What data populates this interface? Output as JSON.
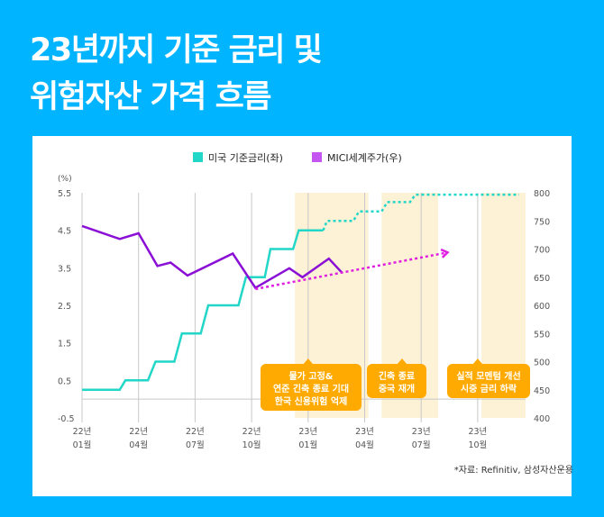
{
  "title": {
    "line1": "23년까지 기준 금리 및",
    "line2": "위험자산 가격 흐름"
  },
  "source": "*자료: Refinitiv, 삼성자산운용",
  "colors": {
    "background": "#00b4ff",
    "rate": "#22d6c8",
    "stock": "#8b10d6",
    "trend": "#e020e0",
    "shade": "#fdf1d6",
    "callout": "#ffaa00"
  },
  "chart_data": {
    "type": "line",
    "title": "23년까지 기준 금리 및 위험자산 가격 흐름",
    "legend": [
      "미국 기준금리(좌)",
      "MICI세계주가(우)"
    ],
    "legend_position": "top-center",
    "left_axis": {
      "unit_label": "(%)",
      "ticks": [
        "5.5",
        "4.5",
        "3.5",
        "2.5",
        "1.5",
        "0.5",
        "-0.5"
      ],
      "range": [
        -0.5,
        5.5
      ]
    },
    "right_axis": {
      "ticks": [
        "800",
        "750",
        "700",
        "650",
        "600",
        "550",
        "500",
        "450",
        "400"
      ],
      "range": [
        400,
        800
      ]
    },
    "x_ticks": [
      {
        "l1": "22년",
        "l2": "01월",
        "m": 0
      },
      {
        "l1": "22년",
        "l2": "04월",
        "m": 3
      },
      {
        "l1": "22년",
        "l2": "07월",
        "m": 6
      },
      {
        "l1": "22년",
        "l2": "10월",
        "m": 9
      },
      {
        "l1": "23년",
        "l2": "01월",
        "m": 12
      },
      {
        "l1": "23년",
        "l2": "04월",
        "m": 15
      },
      {
        "l1": "23년",
        "l2": "07월",
        "m": 18
      },
      {
        "l1": "23년",
        "l2": "10월",
        "m": 21
      }
    ],
    "x_range_months": [
      0,
      23.2
    ],
    "series": [
      {
        "name": "미국 기준금리(좌)",
        "axis": "left",
        "style": "solid-step",
        "points": [
          [
            0,
            0.25
          ],
          [
            2,
            0.25
          ],
          [
            2.3,
            0.5
          ],
          [
            3.5,
            0.5
          ],
          [
            3.9,
            1.0
          ],
          [
            4.9,
            1.0
          ],
          [
            5.3,
            1.75
          ],
          [
            6.3,
            1.75
          ],
          [
            6.7,
            2.5
          ],
          [
            8.3,
            2.5
          ],
          [
            8.7,
            3.25
          ],
          [
            9.7,
            3.25
          ],
          [
            10.0,
            4.0
          ],
          [
            11.2,
            4.0
          ],
          [
            11.5,
            4.5
          ],
          [
            12.8,
            4.5
          ]
        ]
      },
      {
        "name": "미국 기준금리 전망",
        "axis": "left",
        "style": "dotted-step",
        "points": [
          [
            12.8,
            4.5
          ],
          [
            13.0,
            4.75
          ],
          [
            14.4,
            4.75
          ],
          [
            14.7,
            5.0
          ],
          [
            15.9,
            5.0
          ],
          [
            16.2,
            5.25
          ],
          [
            17.4,
            5.25
          ],
          [
            17.7,
            5.45
          ],
          [
            23.2,
            5.45
          ]
        ]
      },
      {
        "name": "MICI세계주가(우)",
        "axis": "right",
        "style": "solid",
        "points": [
          [
            0,
            741
          ],
          [
            2,
            718
          ],
          [
            3,
            728
          ],
          [
            4,
            670
          ],
          [
            4.7,
            676
          ],
          [
            5.6,
            653
          ],
          [
            8,
            692
          ],
          [
            9.2,
            631
          ],
          [
            11,
            666
          ],
          [
            11.7,
            650
          ],
          [
            13.1,
            683
          ],
          [
            13.8,
            658
          ]
        ]
      },
      {
        "name": "주가 전망 추세",
        "axis": "right",
        "style": "dotted-arrow",
        "points": [
          [
            9.2,
            629
          ],
          [
            19.4,
            694
          ]
        ]
      }
    ],
    "shaded_periods": [
      [
        11.3,
        15.2
      ],
      [
        15.9,
        18.9
      ],
      [
        21.2,
        24.3
      ]
    ],
    "annotations": [
      {
        "lines": [
          "물가 고정&",
          "연준 긴축 종료 기대",
          "한국 신용위험 억제"
        ],
        "anchor_month": 12
      },
      {
        "lines": [
          "긴축 종료",
          "중국 재개"
        ],
        "anchor_month": 16.5
      },
      {
        "lines": [
          "실적 모멘텀 개선",
          "시중 금리 하락"
        ],
        "anchor_month": 21
      }
    ]
  }
}
